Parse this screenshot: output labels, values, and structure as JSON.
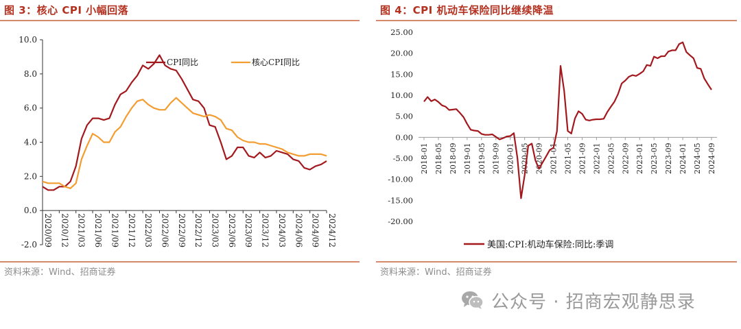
{
  "left_panel": {
    "title": "图 3：核心 CPI 小幅回落",
    "source": "资料来源：Wind、招商证券"
  },
  "right_panel": {
    "title": "图 4：CPI 机动车保险同比继续降温",
    "source": "资料来源：Wind、招商证券"
  },
  "watermark": {
    "text": "公众号 · 招商宏观静思录",
    "icon": "wechat-icon"
  },
  "colors": {
    "accent": "#b4301f",
    "rule": "#d9896b",
    "series_dark": "#a3181d",
    "series_orange": "#f39c2f"
  },
  "chart_data": [
    {
      "type": "line",
      "title": "核心 CPI 小幅回落",
      "xlabel": "",
      "ylabel": "",
      "ylim": [
        -2.0,
        10.0
      ],
      "y_ticks": [
        "-2.0",
        "0.0",
        "2.0",
        "4.0",
        "6.0",
        "8.0",
        "10.0"
      ],
      "x_tick_labels": [
        "2020/09",
        "2020/12",
        "2021/03",
        "2021/06",
        "2021/09",
        "2021/12",
        "2022/03",
        "2022/06",
        "2022/09",
        "2022/12",
        "2023/03",
        "2023/06",
        "2023/09",
        "2023/12",
        "2024/03",
        "2024/06",
        "2024/09",
        "2024/12"
      ],
      "legend_position": "top-center",
      "series": [
        {
          "name": "CPI同比",
          "values": [
            1.4,
            1.2,
            1.2,
            1.4,
            1.4,
            1.7,
            2.6,
            4.2,
            5.0,
            5.4,
            5.4,
            5.3,
            5.4,
            6.2,
            6.8,
            7.0,
            7.5,
            7.9,
            8.5,
            8.3,
            8.6,
            9.1,
            8.5,
            8.3,
            8.2,
            7.7,
            7.1,
            6.5,
            6.4,
            6.0,
            5.0,
            4.9,
            4.0,
            3.0,
            3.2,
            3.7,
            3.7,
            3.2,
            3.1,
            3.4,
            3.1,
            3.2,
            3.5,
            3.4,
            3.3,
            3.0,
            2.9,
            2.5,
            2.4,
            2.6,
            2.7,
            2.9
          ]
        },
        {
          "name": "核心CPI同比",
          "values": [
            1.7,
            1.6,
            1.6,
            1.6,
            1.4,
            1.3,
            1.6,
            3.0,
            3.8,
            4.5,
            4.3,
            4.0,
            4.0,
            4.6,
            4.9,
            5.5,
            6.0,
            6.4,
            6.5,
            6.2,
            6.0,
            5.9,
            5.9,
            6.3,
            6.6,
            6.3,
            6.0,
            5.7,
            5.6,
            5.5,
            5.6,
            5.5,
            5.3,
            4.8,
            4.7,
            4.3,
            4.1,
            4.0,
            4.0,
            3.9,
            3.9,
            3.8,
            3.7,
            3.6,
            3.4,
            3.3,
            3.2,
            3.2,
            3.3,
            3.3,
            3.3,
            3.2
          ]
        }
      ]
    },
    {
      "type": "line",
      "title": "CPI 机动车保险同比继续降温",
      "xlabel": "",
      "ylabel": "",
      "ylim": [
        -20.0,
        25.0
      ],
      "y_ticks": [
        "-20.00",
        "-15.00",
        "-10.00",
        "-5.00",
        "0.00",
        "5.00",
        "10.00",
        "15.00",
        "20.00",
        "25.00"
      ],
      "x_tick_labels": [
        "2018-01",
        "2018-05",
        "2018-09",
        "2019-01",
        "2019-05",
        "2019-09",
        "2020-01",
        "2020-05",
        "2020-09",
        "2021-01",
        "2021-05",
        "2021-09",
        "2022-01",
        "2022-05",
        "2022-09",
        "2023-01",
        "2023-05",
        "2023-09",
        "2024-01",
        "2024-05",
        "2024-09"
      ],
      "legend_position": "bottom-center",
      "series": [
        {
          "name": "美国:CPI:机动车保险:同比:季调",
          "values": [
            8.5,
            9.6,
            8.6,
            9.0,
            8.4,
            7.6,
            7.3,
            6.5,
            6.6,
            6.7,
            5.8,
            4.8,
            3.2,
            1.8,
            1.6,
            1.5,
            0.8,
            0.6,
            0.6,
            0.7,
            0.1,
            -0.5,
            -0.2,
            0.2,
            0.3,
            1.0,
            -5.0,
            -14.5,
            -9.0,
            -2.0,
            -1.5,
            -5.5,
            -7.5,
            -6.0,
            -4.5,
            -3.0,
            -2.5,
            1.5,
            17.0,
            11.0,
            1.5,
            0.9,
            4.5,
            6.2,
            5.6,
            4.2,
            4.0,
            4.2,
            4.3,
            4.3,
            4.4,
            6.0,
            7.3,
            8.5,
            10.3,
            12.8,
            13.5,
            14.4,
            14.8,
            14.6,
            15.1,
            15.7,
            17.2,
            17.0,
            19.2,
            18.8,
            19.3,
            19.3,
            20.4,
            20.7,
            20.7,
            22.2,
            22.6,
            20.3,
            19.5,
            18.8,
            16.5,
            16.3,
            14.0,
            12.6,
            11.3
          ]
        }
      ]
    }
  ]
}
